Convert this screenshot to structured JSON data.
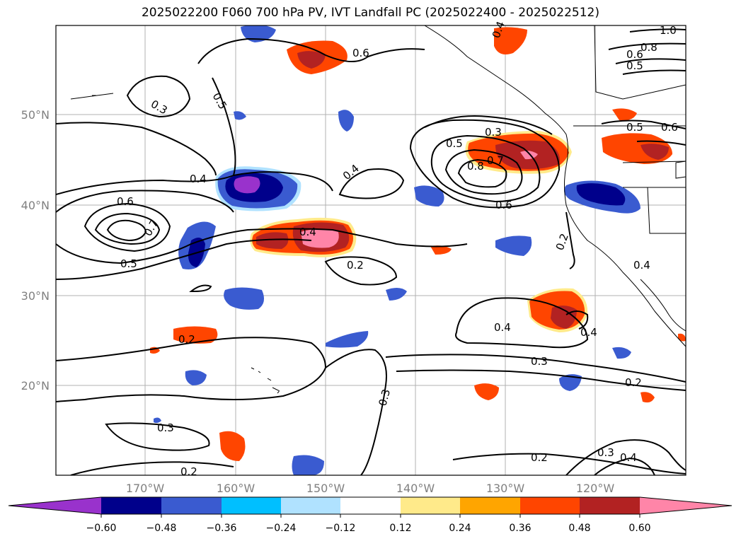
{
  "title": "2025022200 F060 700 hPa PV, IVT Landfall PC (2025022400 - 2025022512)",
  "map": {
    "lat_labels": [
      "50°N",
      "40°N",
      "30°N",
      "20°N"
    ],
    "lon_labels": [
      "170°W",
      "160°W",
      "150°W",
      "140°W",
      "130°W",
      "120°W"
    ],
    "contour_labels": [
      {
        "v": "0.6"
      },
      {
        "v": "0.5"
      },
      {
        "v": "0.3"
      },
      {
        "v": "0.4"
      },
      {
        "v": "0.6"
      },
      {
        "v": "0.7"
      },
      {
        "v": "0.5"
      },
      {
        "v": "0.4"
      },
      {
        "v": "0.4"
      },
      {
        "v": "0.5"
      },
      {
        "v": "0.3"
      },
      {
        "v": "0.7"
      },
      {
        "v": "0.8"
      },
      {
        "v": "0.6"
      },
      {
        "v": "0.2"
      },
      {
        "v": "0.2"
      },
      {
        "v": "0.4"
      },
      {
        "v": "0.4"
      },
      {
        "v": "0.2"
      },
      {
        "v": "0.3"
      },
      {
        "v": "0.3"
      },
      {
        "v": "0.2"
      },
      {
        "v": "0.3"
      },
      {
        "v": "0.2"
      },
      {
        "v": "0.2"
      },
      {
        "v": "0.3"
      },
      {
        "v": "0.4"
      },
      {
        "v": "0.4"
      },
      {
        "v": "0.5"
      },
      {
        "v": "0.6"
      },
      {
        "v": "1.0"
      },
      {
        "v": "0.8"
      },
      {
        "v": "0.6"
      },
      {
        "v": "0.5"
      },
      {
        "v": "0.4"
      }
    ]
  },
  "colorbar": {
    "ticks": [
      "−0.60",
      "−0.48",
      "−0.36",
      "−0.24",
      "−0.12",
      "0.12",
      "0.24",
      "0.36",
      "0.48",
      "0.60"
    ],
    "colors": [
      "#9932cc",
      "#00008b",
      "#3a5bd0",
      "#00bfff",
      "#b0e2ff",
      "#ffffff",
      "#ffea8a",
      "#ffa500",
      "#ff4500",
      "#b22222",
      "#ff85a8"
    ]
  },
  "colors": {
    "neg_strong": "#00008b",
    "neg_mid": "#3a5bd0",
    "neg_light": "#00bfff",
    "neg_pale": "#b0e2ff",
    "neg_max": "#9932cc",
    "pos_pale": "#ffea8a",
    "pos_light": "#ffa500",
    "pos_mid": "#ff4500",
    "pos_strong": "#b22222",
    "pos_max": "#ff85a8"
  }
}
